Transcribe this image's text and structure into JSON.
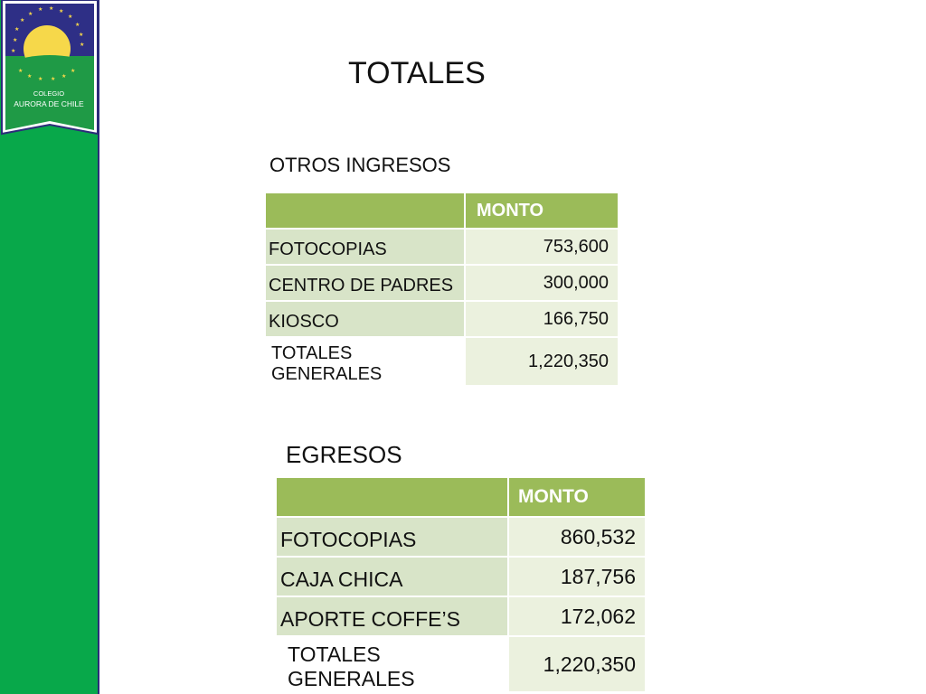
{
  "sidebar": {
    "logo": {
      "line1": "COLEGIO",
      "line2": "AURORA DE CHILE"
    }
  },
  "title": "TOTALES",
  "otros_ingresos": {
    "heading": "OTROS INGRESOS",
    "column_header": "MONTO",
    "rows": [
      {
        "label": "FOTOCOPIAS",
        "value": "753,600"
      },
      {
        "label": "CENTRO DE PADRES",
        "value": "300,000"
      },
      {
        "label": "KIOSCO",
        "value": "166,750"
      },
      {
        "label": "TOTALES GENERALES",
        "value": "1,220,350"
      }
    ]
  },
  "egresos": {
    "heading": "EGRESOS",
    "column_header": "MONTO",
    "rows": [
      {
        "label": "FOTOCOPIAS",
        "value": "860,532"
      },
      {
        "label": "CAJA CHICA",
        "value": "187,756"
      },
      {
        "label": "APORTE COFFE’S",
        "value": "172,062"
      },
      {
        "label": "TOTALES GENERALES",
        "value": "1,220,350"
      }
    ]
  }
}
